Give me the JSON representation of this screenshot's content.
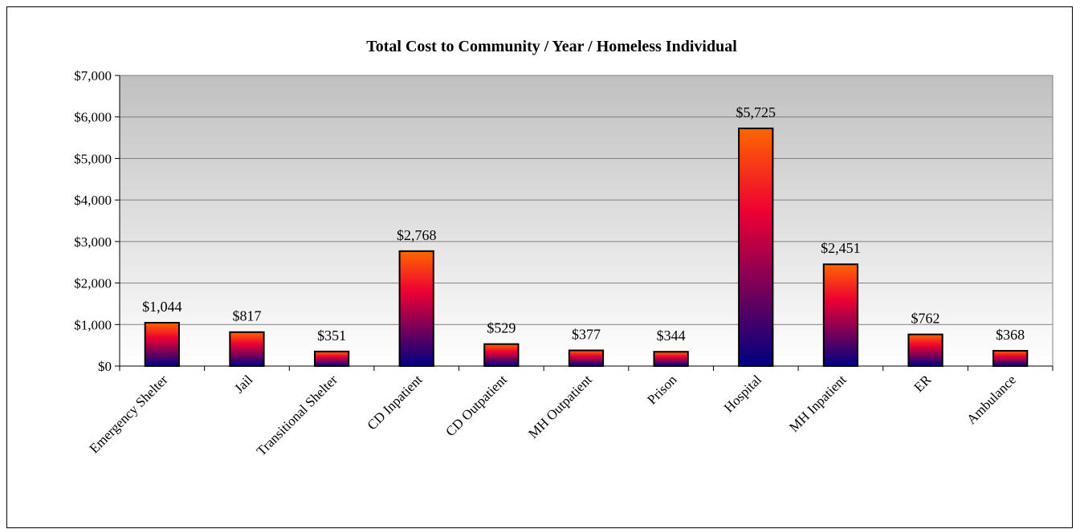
{
  "chart_data": {
    "type": "bar",
    "title": "Total Cost to Community / Year / Homeless Individual",
    "xlabel": "",
    "ylabel": "",
    "ylim": [
      0,
      7000
    ],
    "ytick_values": [
      0,
      1000,
      2000,
      3000,
      4000,
      5000,
      6000,
      7000
    ],
    "ytick_labels": [
      "$0",
      "$1,000",
      "$2,000",
      "$3,000",
      "$4,000",
      "$5,000",
      "$6,000",
      "$7,000"
    ],
    "categories": [
      "Emergency Shelter",
      "Jail",
      "Transitional Shelter",
      "CD Inpatient",
      "CD Outpatient",
      "MH Outpatient",
      "Prison",
      "Hospital",
      "MH Inpatient",
      "ER",
      "Ambulance"
    ],
    "values": [
      1044,
      817,
      351,
      2768,
      529,
      377,
      344,
      5725,
      2451,
      762,
      368
    ],
    "data_labels": [
      "$1,044",
      "$817",
      "$351",
      "$2,768",
      "$529",
      "$377",
      "$344",
      "$5,725",
      "$2,451",
      "$762",
      "$368"
    ],
    "grid": true,
    "legend": "none",
    "colors": {
      "bar_top": "#ff6600",
      "bar_mid": "#ee0033",
      "bar_bottom": "#000080",
      "plot_bg_top": "#c0c0c0",
      "plot_bg_bottom": "#ffffff",
      "gridline": "#808080"
    }
  }
}
